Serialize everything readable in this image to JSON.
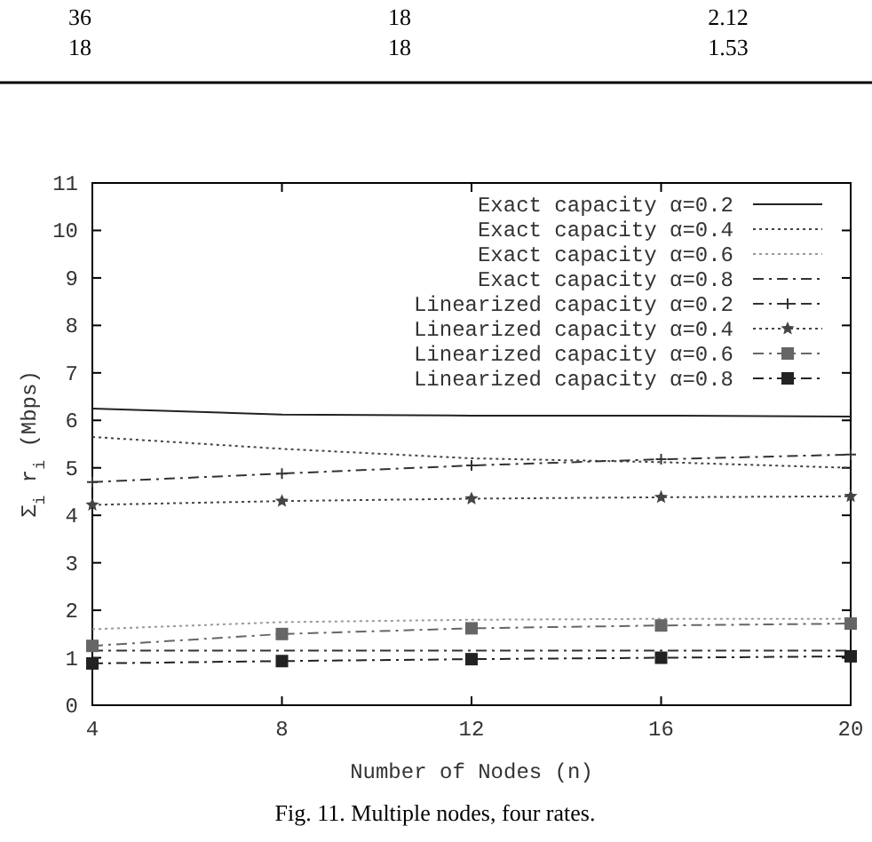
{
  "chart_data": {
    "type": "line",
    "xlabel": "Number of Nodes (n)",
    "ylabel": "Σ$_{i}$ r$_{i}$ (Mbps)",
    "x": [
      4,
      8,
      12,
      16,
      20
    ],
    "xlim": [
      4,
      20
    ],
    "xticks": [
      4,
      8,
      12,
      16,
      20
    ],
    "ylim": [
      0,
      11
    ],
    "yticks": [
      0,
      1,
      2,
      3,
      4,
      5,
      6,
      7,
      8,
      9,
      10,
      11
    ],
    "legend": "top right",
    "annotations": [
      "36",
      "18",
      "2.12",
      "18",
      "18",
      "1.53",
      "Fig. 11. Multiple nodes, four rates."
    ],
    "series": [
      {
        "name": "Exact capacity α=0.2",
        "color": "#222222",
        "line_style": "solid",
        "marker": "none",
        "values": [
          6.25,
          6.12,
          6.1,
          6.1,
          6.08
        ]
      },
      {
        "name": "Exact capacity α=0.4",
        "color": "#444444",
        "line_style": "dotted",
        "marker": "none",
        "values": [
          5.65,
          5.4,
          5.2,
          5.12,
          5.0
        ]
      },
      {
        "name": "Exact capacity α=0.6",
        "color": "#999999",
        "line_style": "dotted",
        "marker": "none",
        "values": [
          1.6,
          1.75,
          1.8,
          1.82,
          1.82
        ]
      },
      {
        "name": "Exact capacity α=0.8",
        "color": "#333333",
        "line_style": "dashed",
        "marker": "none",
        "values": [
          1.15,
          1.15,
          1.15,
          1.15,
          1.15
        ]
      },
      {
        "name": "Linearized capacity α=0.2",
        "color": "#333333",
        "line_style": "dashed",
        "marker": "cross",
        "values": [
          4.7,
          4.88,
          5.05,
          5.18,
          5.28
        ]
      },
      {
        "name": "Linearized capacity α=0.4",
        "color": "#444444",
        "line_style": "dotted",
        "marker": "star",
        "values": [
          4.22,
          4.3,
          4.35,
          4.38,
          4.4
        ]
      },
      {
        "name": "Linearized capacity α=0.6",
        "color": "#666666",
        "line_style": "dashed",
        "marker": "square",
        "values": [
          1.25,
          1.5,
          1.62,
          1.68,
          1.72
        ]
      },
      {
        "name": "Linearized capacity α=0.8",
        "color": "#222222",
        "line_style": "dashed",
        "marker": "square",
        "values": [
          0.88,
          0.93,
          0.97,
          1.0,
          1.03
        ]
      }
    ]
  }
}
